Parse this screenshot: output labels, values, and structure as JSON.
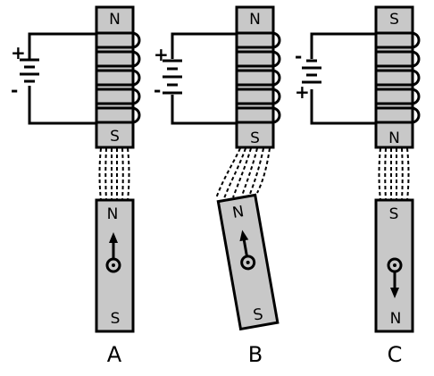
{
  "panels": [
    {
      "caption": "A",
      "electromagnet": {
        "top_pole": "N",
        "bottom_pole": "S"
      },
      "battery": {
        "upper_sign": "+",
        "lower_sign": "-"
      },
      "bar_magnet": {
        "top_pole": "N",
        "bottom_pole": "S",
        "arrow": "up"
      }
    },
    {
      "caption": "B",
      "electromagnet": {
        "top_pole": "N",
        "bottom_pole": "S"
      },
      "battery": {
        "upper_sign": "+",
        "lower_sign": "-"
      },
      "bar_magnet": {
        "top_pole": "N",
        "bottom_pole": "S",
        "arrow": "up"
      }
    },
    {
      "caption": "C",
      "electromagnet": {
        "top_pole": "S",
        "bottom_pole": "N"
      },
      "battery": {
        "upper_sign": "-",
        "lower_sign": "+"
      },
      "bar_magnet": {
        "top_pole": "S",
        "bottom_pole": "N",
        "arrow": "down"
      }
    }
  ]
}
